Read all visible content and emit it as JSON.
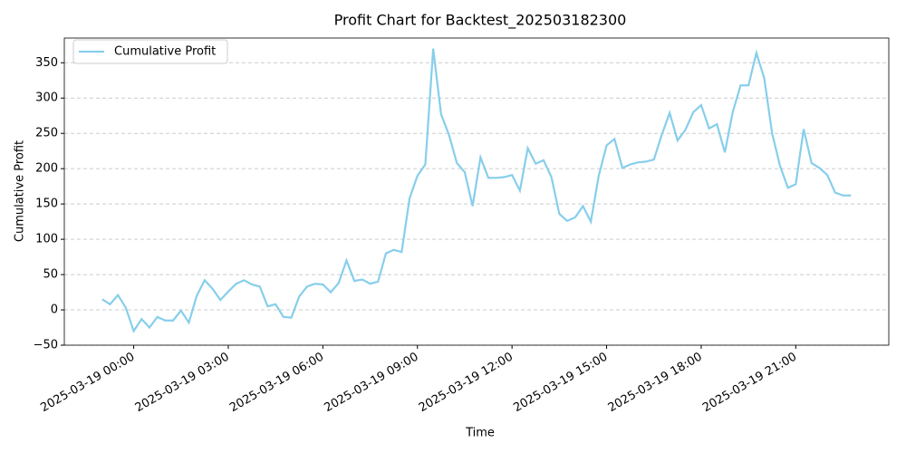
{
  "chart_data": {
    "type": "line",
    "title": "Profit Chart for Backtest_202503182300",
    "x_label": "Time",
    "y_label": "Cumulative Profit",
    "x": [
      "2025-03-18 23:00",
      "2025-03-18 23:15",
      "2025-03-18 23:30",
      "2025-03-18 23:45",
      "2025-03-19 00:00",
      "2025-03-19 00:15",
      "2025-03-19 00:30",
      "2025-03-19 00:45",
      "2025-03-19 01:00",
      "2025-03-19 01:15",
      "2025-03-19 01:30",
      "2025-03-19 01:45",
      "2025-03-19 02:00",
      "2025-03-19 02:15",
      "2025-03-19 02:30",
      "2025-03-19 02:45",
      "2025-03-19 03:00",
      "2025-03-19 03:15",
      "2025-03-19 03:30",
      "2025-03-19 03:45",
      "2025-03-19 04:00",
      "2025-03-19 04:15",
      "2025-03-19 04:30",
      "2025-03-19 04:45",
      "2025-03-19 05:00",
      "2025-03-19 05:15",
      "2025-03-19 05:30",
      "2025-03-19 05:45",
      "2025-03-19 06:00",
      "2025-03-19 06:15",
      "2025-03-19 06:30",
      "2025-03-19 06:45",
      "2025-03-19 07:00",
      "2025-03-19 07:15",
      "2025-03-19 07:30",
      "2025-03-19 07:45",
      "2025-03-19 08:00",
      "2025-03-19 08:15",
      "2025-03-19 08:30",
      "2025-03-19 08:45",
      "2025-03-19 09:00",
      "2025-03-19 09:15",
      "2025-03-19 09:30",
      "2025-03-19 09:45",
      "2025-03-19 10:00",
      "2025-03-19 10:15",
      "2025-03-19 10:30",
      "2025-03-19 10:45",
      "2025-03-19 11:00",
      "2025-03-19 11:15",
      "2025-03-19 11:30",
      "2025-03-19 11:45",
      "2025-03-19 12:00",
      "2025-03-19 12:15",
      "2025-03-19 12:30",
      "2025-03-19 12:45",
      "2025-03-19 13:00",
      "2025-03-19 13:15",
      "2025-03-19 13:30",
      "2025-03-19 13:45",
      "2025-03-19 14:00",
      "2025-03-19 14:15",
      "2025-03-19 14:30",
      "2025-03-19 14:45",
      "2025-03-19 15:00",
      "2025-03-19 15:15",
      "2025-03-19 15:30",
      "2025-03-19 15:45",
      "2025-03-19 16:00",
      "2025-03-19 16:15",
      "2025-03-19 16:30",
      "2025-03-19 16:45",
      "2025-03-19 17:00",
      "2025-03-19 17:15",
      "2025-03-19 17:30",
      "2025-03-19 17:45",
      "2025-03-19 18:00",
      "2025-03-19 18:15",
      "2025-03-19 18:30",
      "2025-03-19 18:45",
      "2025-03-19 19:00",
      "2025-03-19 19:15",
      "2025-03-19 19:30",
      "2025-03-19 19:45",
      "2025-03-19 20:00",
      "2025-03-19 20:15",
      "2025-03-19 20:30",
      "2025-03-19 20:45",
      "2025-03-19 21:00",
      "2025-03-19 21:15",
      "2025-03-19 21:30",
      "2025-03-19 21:45",
      "2025-03-19 22:00",
      "2025-03-19 22:15",
      "2025-03-19 22:30",
      "2025-03-19 22:45"
    ],
    "series": [
      {
        "name": "Cumulative Profit",
        "color": "#87ceeb",
        "values": [
          15,
          8,
          21,
          3,
          -30,
          -13,
          -25,
          -10,
          -15,
          -15,
          -1,
          -18,
          20,
          42,
          30,
          14,
          26,
          37,
          42,
          36,
          33,
          5,
          8,
          -10,
          -11,
          19,
          33,
          37,
          36,
          25,
          38,
          70,
          41,
          43,
          37,
          40,
          80,
          85,
          82,
          158,
          190,
          206,
          370,
          277,
          248,
          208,
          195,
          147,
          216,
          187,
          187,
          188,
          191,
          169,
          229,
          207,
          212,
          188,
          136,
          126,
          131,
          147,
          125,
          190,
          233,
          242,
          201,
          206,
          209,
          210,
          213,
          248,
          279,
          240,
          255,
          280,
          290,
          257,
          263,
          223,
          280,
          318,
          318,
          364,
          328,
          250,
          204,
          173,
          178,
          256,
          208,
          201,
          191,
          166,
          162,
          162
        ]
      }
    ],
    "xlim": [
      "2025-03-18 21:48",
      "2025-03-19 23:57"
    ],
    "xticks": [
      "2025-03-19 00:00",
      "2025-03-19 03:00",
      "2025-03-19 06:00",
      "2025-03-19 09:00",
      "2025-03-19 12:00",
      "2025-03-19 15:00",
      "2025-03-19 18:00",
      "2025-03-19 21:00"
    ],
    "ylim": [
      -50,
      385
    ],
    "yticks": [
      {
        "value": -50,
        "label": "−50"
      },
      0,
      50,
      100,
      150,
      200,
      250,
      300,
      350
    ],
    "grid": true,
    "legend": "upper left"
  }
}
